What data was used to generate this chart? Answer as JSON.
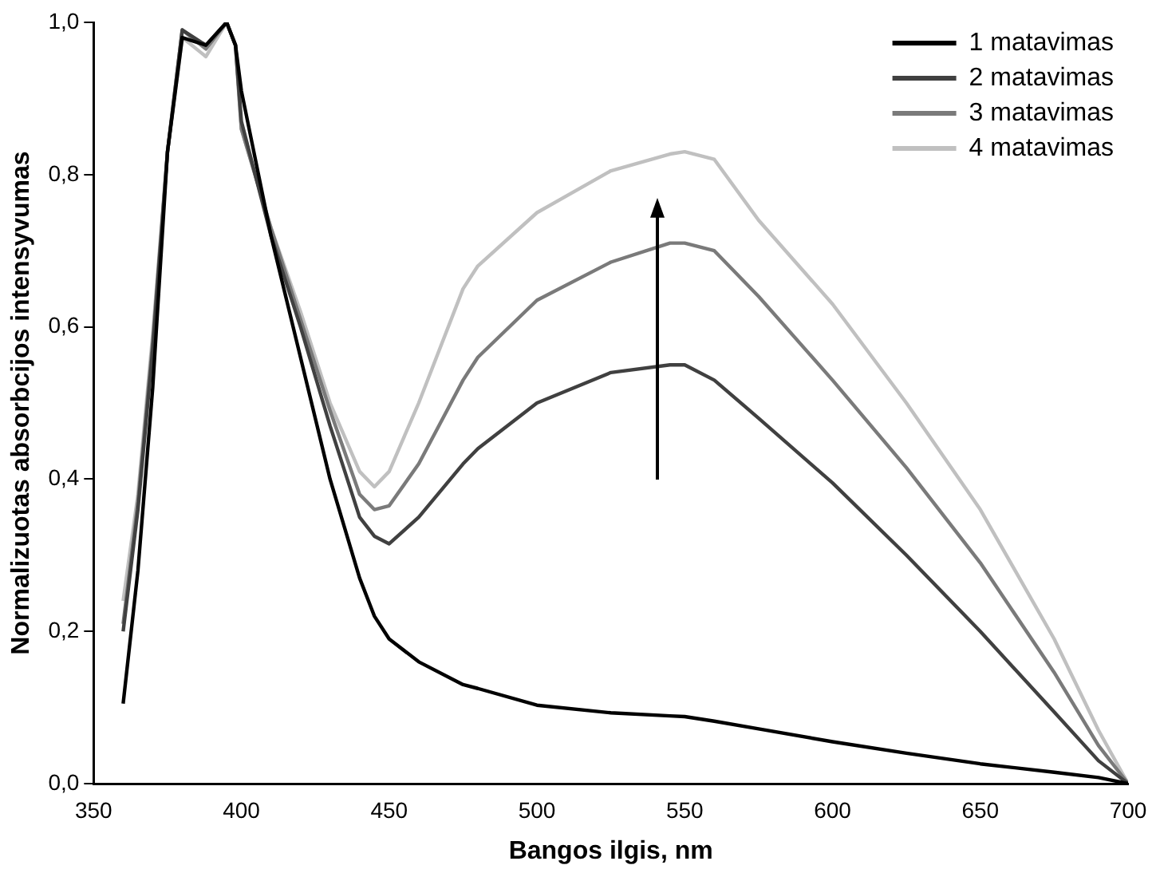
{
  "chart_data": {
    "type": "line",
    "xlabel": "Bangos ilgis, nm",
    "ylabel": "Normalizuotas absorbcijos intensyvumas",
    "xlim": [
      350,
      700
    ],
    "xticks": [
      350,
      400,
      450,
      500,
      550,
      600,
      650,
      700
    ],
    "ylim": [
      0,
      1
    ],
    "yticks": [
      {
        "value": 0,
        "label": "0,0"
      },
      {
        "value": 0.2,
        "label": "0,2"
      },
      {
        "value": 0.4,
        "label": "0,4"
      },
      {
        "value": 0.6,
        "label": "0,6"
      },
      {
        "value": 0.8,
        "label": "0,8"
      },
      {
        "value": 1,
        "label": "1,0"
      }
    ],
    "grid": false,
    "legend": "top right",
    "marker": "none",
    "line_style": "solid",
    "x": [
      360,
      365,
      370,
      375,
      380,
      388,
      395,
      398,
      400,
      410,
      420,
      430,
      440,
      445,
      450,
      460,
      475,
      480,
      500,
      525,
      545,
      550,
      560,
      575,
      600,
      625,
      650,
      675,
      690,
      700
    ],
    "series": [
      {
        "name": "1 matavimas",
        "color": "#000000",
        "values": [
          0.105,
          0.28,
          0.52,
          0.83,
          0.98,
          0.97,
          1.0,
          0.97,
          0.91,
          0.72,
          0.56,
          0.4,
          0.27,
          0.22,
          0.19,
          0.16,
          0.13,
          0.125,
          0.103,
          0.093,
          0.089,
          0.088,
          0.082,
          0.072,
          0.055,
          0.04,
          0.026,
          0.015,
          0.008,
          0.0
        ]
      },
      {
        "name": "2 matavimas",
        "color": "#404040",
        "values": [
          0.2,
          0.36,
          0.57,
          0.83,
          0.99,
          0.97,
          1.0,
          0.97,
          0.87,
          0.72,
          0.6,
          0.47,
          0.35,
          0.325,
          0.315,
          0.35,
          0.42,
          0.44,
          0.5,
          0.54,
          0.55,
          0.55,
          0.53,
          0.48,
          0.395,
          0.3,
          0.2,
          0.094,
          0.03,
          0.0
        ]
      },
      {
        "name": "3 matavimas",
        "color": "#7a7a7a",
        "values": [
          0.21,
          0.37,
          0.58,
          0.83,
          0.99,
          0.965,
          1.0,
          0.97,
          0.86,
          0.73,
          0.61,
          0.49,
          0.38,
          0.36,
          0.365,
          0.42,
          0.53,
          0.56,
          0.635,
          0.685,
          0.71,
          0.71,
          0.7,
          0.64,
          0.53,
          0.415,
          0.29,
          0.146,
          0.05,
          0.0
        ]
      },
      {
        "name": "4 matavimas",
        "color": "#c0c0c0",
        "values": [
          0.24,
          0.38,
          0.59,
          0.83,
          0.98,
          0.955,
          1.0,
          0.97,
          0.86,
          0.73,
          0.62,
          0.5,
          0.41,
          0.39,
          0.41,
          0.5,
          0.65,
          0.68,
          0.75,
          0.805,
          0.827,
          0.83,
          0.82,
          0.74,
          0.63,
          0.5,
          0.36,
          0.19,
          0.07,
          0.0
        ]
      }
    ]
  }
}
